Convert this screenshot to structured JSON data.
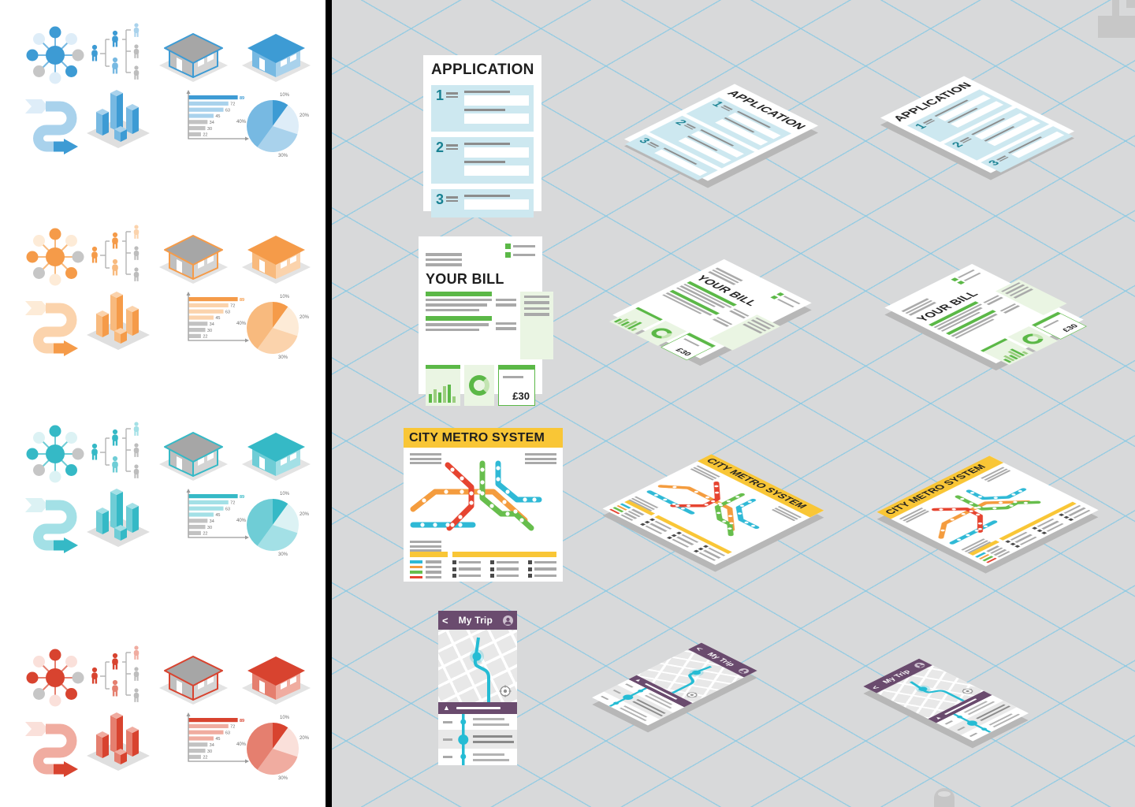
{
  "left_panel": {
    "themes": [
      {
        "name": "blue",
        "color": "#3D9BD4",
        "mid": "#77B9E2",
        "light": "#A9D2EC",
        "pale": "#DEEDF8"
      },
      {
        "name": "orange",
        "color": "#F59B49",
        "mid": "#F8BA7E",
        "light": "#FBD3AC",
        "pale": "#FDEBD7"
      },
      {
        "name": "teal",
        "color": "#35B9C6",
        "mid": "#6FCDD6",
        "light": "#A3E0E6",
        "pale": "#DCF2F4"
      },
      {
        "name": "red",
        "color": "#D8432F",
        "mid": "#E57F6F",
        "light": "#F0ACA0",
        "pale": "#FAE0DA"
      }
    ],
    "bar_values": [
      89,
      72,
      63,
      45,
      34,
      30,
      22
    ],
    "pie_labels": [
      "10%",
      "20%",
      "30%",
      "40%"
    ]
  },
  "canvas": {
    "application": {
      "title": "APPLICATION",
      "section_numbers": [
        "1",
        "2",
        "3"
      ]
    },
    "bill": {
      "title": "YOUR BILL",
      "price": "£30"
    },
    "metro": {
      "title": "CITY METRO SYSTEM"
    },
    "trip": {
      "back": "<",
      "title": "My Trip"
    }
  },
  "colors": {
    "canvas_bg": "#D8D9DA",
    "grid": "#82C8E4",
    "divider": "#000000",
    "app_section": "#CDE8F0",
    "app_number": "#1A8293",
    "bill_green": "#5BB847",
    "bill_green_soft": "#9ACD7E",
    "bill_pale": "#EAF5E3",
    "metro_yellow": "#F9C636",
    "metro_red": "#E64430",
    "metro_orange": "#F49C3E",
    "metro_green": "#67BE4D",
    "metro_teal": "#2FB9D6",
    "trip_purple": "#6A4B6E",
    "trip_teal": "#25BCD4",
    "gray_line": "#A9A9A9",
    "dark_line": "#8C8C8C",
    "satellite_gray": "#C6C6C6"
  }
}
